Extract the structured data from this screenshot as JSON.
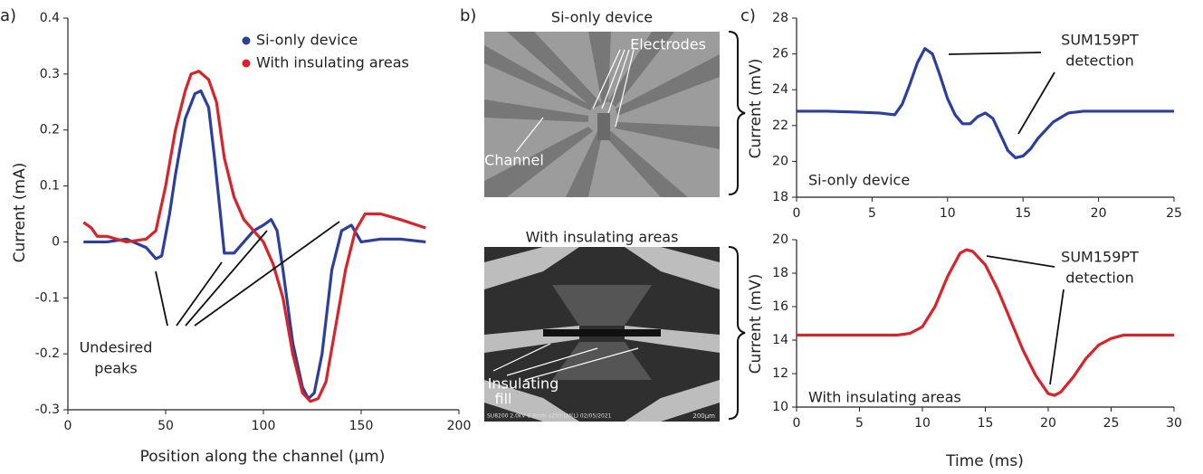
{
  "chart_data": [
    {
      "type": "line",
      "x_label": "Position along the channel (µm)",
      "y_label": "Current (mA)",
      "xlim": [
        0,
        200
      ],
      "xticks": [
        0,
        50,
        100,
        150,
        200
      ],
      "ylim": [
        -0.3,
        0.4
      ],
      "yticks": [
        -0.3,
        -0.2,
        -0.1,
        0,
        0.1,
        0.2,
        0.3,
        0.4
      ],
      "legend": "top-right",
      "annotations": [
        [
          "Undesired",
          "peaks"
        ]
      ],
      "series": [
        {
          "name": "Si-only device",
          "color": "#2b3f9e",
          "x": [
            8,
            20,
            30,
            40,
            45,
            48,
            52,
            55,
            60,
            65,
            68,
            72,
            75,
            78,
            80,
            85,
            90,
            95,
            100,
            104,
            107,
            110,
            115,
            120,
            123,
            126,
            130,
            135,
            140,
            145,
            150,
            160,
            170,
            183
          ],
          "values": [
            0,
            0,
            0.005,
            -0.01,
            -0.03,
            -0.025,
            0.05,
            0.12,
            0.22,
            0.265,
            0.27,
            0.24,
            0.15,
            0.05,
            -0.02,
            -0.02,
            0,
            0.02,
            0.03,
            0.04,
            0.02,
            -0.05,
            -0.18,
            -0.26,
            -0.28,
            -0.27,
            -0.2,
            -0.05,
            0.02,
            0.03,
            0,
            0.005,
            0.005,
            0
          ]
        },
        {
          "name": "With insulating areas",
          "color": "#d9232a",
          "x": [
            8,
            12,
            15,
            20,
            30,
            40,
            45,
            50,
            55,
            60,
            63,
            67,
            72,
            76,
            80,
            85,
            90,
            95,
            100,
            105,
            110,
            115,
            120,
            124,
            128,
            132,
            137,
            142,
            147,
            152,
            160,
            170,
            183
          ],
          "values": [
            0.035,
            0.025,
            0.01,
            0.01,
            0,
            0.005,
            0.02,
            0.1,
            0.2,
            0.27,
            0.3,
            0.305,
            0.29,
            0.25,
            0.15,
            0.08,
            0.04,
            0.02,
            0,
            -0.04,
            -0.1,
            -0.2,
            -0.27,
            -0.285,
            -0.28,
            -0.25,
            -0.15,
            -0.05,
            0.02,
            0.05,
            0.05,
            0.04,
            0.025
          ]
        }
      ]
    },
    {
      "type": "line",
      "y_label": "Current (mV)",
      "xlim": [
        0,
        25
      ],
      "xticks": [
        0,
        5,
        10,
        15,
        20,
        25
      ],
      "ylim": [
        18,
        28
      ],
      "yticks": [
        18,
        20,
        22,
        24,
        26,
        28
      ],
      "annotations": [
        [
          "SUM159PT",
          "detection"
        ],
        [
          "Si-only device"
        ]
      ],
      "series": [
        {
          "color": "#2b3f9e",
          "x": [
            0,
            2,
            4,
            5.5,
            6.5,
            7,
            7.5,
            8,
            8.5,
            9,
            9.5,
            10,
            10.5,
            11,
            11.5,
            12,
            12.5,
            13,
            13.5,
            14,
            14.5,
            15,
            15.5,
            16,
            17,
            18,
            19,
            20,
            22,
            25
          ],
          "values": [
            22.8,
            22.8,
            22.75,
            22.7,
            22.6,
            23.2,
            24.3,
            25.5,
            26.3,
            26,
            24.8,
            23.5,
            22.6,
            22.1,
            22.1,
            22.5,
            22.7,
            22.4,
            21.5,
            20.6,
            20.2,
            20.3,
            20.7,
            21.3,
            22.2,
            22.7,
            22.8,
            22.8,
            22.8,
            22.8
          ]
        }
      ]
    },
    {
      "type": "line",
      "x_label": "Time (ms)",
      "y_label": "Current (mV)",
      "xlim": [
        0,
        30
      ],
      "xticks": [
        0,
        5,
        10,
        15,
        20,
        25,
        30
      ],
      "ylim": [
        10,
        20
      ],
      "yticks": [
        10,
        12,
        14,
        16,
        18,
        20
      ],
      "annotations": [
        [
          "SUM159PT",
          "detection"
        ],
        [
          "With insulating areas"
        ]
      ],
      "series": [
        {
          "color": "#d9232a",
          "x": [
            0,
            8,
            9,
            10,
            11,
            12,
            13,
            13.5,
            14,
            15,
            16,
            17,
            18,
            19,
            20,
            20.5,
            21,
            22,
            23,
            24,
            25,
            26,
            28,
            30
          ],
          "values": [
            14.3,
            14.3,
            14.4,
            14.8,
            16,
            17.8,
            19.2,
            19.4,
            19.3,
            18.5,
            17,
            15.2,
            13.4,
            11.9,
            10.8,
            10.7,
            10.9,
            11.8,
            12.9,
            13.7,
            14.1,
            14.3,
            14.3,
            14.3
          ]
        }
      ]
    }
  ],
  "panel_labels": [
    "a)",
    "b)",
    "c)"
  ],
  "micrographs": [
    {
      "title": "Si-only device",
      "labels": [
        [
          "Electrodes"
        ],
        [
          "Channel"
        ]
      ]
    },
    {
      "title": "With insulating areas",
      "labels": [
        [
          "Insulating",
          "fill"
        ]
      ],
      "footer": [
        "SU8200 2.0kV 8.8mm x250 LM(L) 02/05/2021",
        "200µm"
      ]
    }
  ]
}
